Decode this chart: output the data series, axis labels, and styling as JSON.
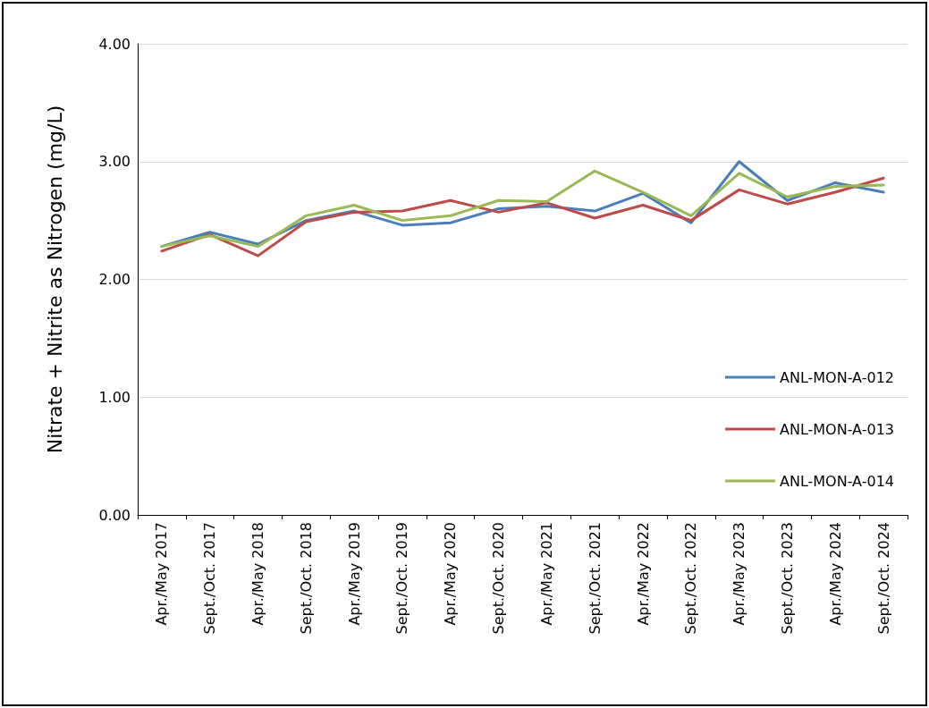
{
  "chart_data": {
    "type": "line",
    "ylabel": "Nitrate + Nitrite as Nitrogen (mg/L)",
    "categories": [
      "Apr./May 2017",
      "Sept./Oct. 2017",
      "Apr./May 2018",
      "Sept./Oct. 2018",
      "Apr./May 2019",
      "Sept./Oct. 2019",
      "Apr./May 2020",
      "Sept./Oct. 2020",
      "Apr./May 2021",
      "Sept./Oct. 2021",
      "Apr./May 2022",
      "Sept./Oct. 2022",
      "Apr./May 2023",
      "Sept./Oct. 2023",
      "Apr./May 2024",
      "Sept./Oct. 2024"
    ],
    "series": [
      {
        "name": "ANL-MON-A-012",
        "color": "#4a7ebb",
        "values": [
          2.28,
          2.4,
          2.3,
          2.5,
          2.58,
          2.46,
          2.48,
          2.6,
          2.62,
          2.58,
          2.73,
          2.48,
          3.0,
          2.67,
          2.82,
          2.74
        ]
      },
      {
        "name": "ANL-MON-A-013",
        "color": "#be4b48",
        "values": [
          2.24,
          2.38,
          2.2,
          2.49,
          2.57,
          2.58,
          2.67,
          2.57,
          2.65,
          2.52,
          2.63,
          2.5,
          2.76,
          2.64,
          2.74,
          2.86
        ]
      },
      {
        "name": "ANL-MON-A-014",
        "color": "#98b954",
        "values": [
          2.28,
          2.37,
          2.28,
          2.54,
          2.63,
          2.5,
          2.54,
          2.67,
          2.66,
          2.92,
          2.74,
          2.54,
          2.9,
          2.7,
          2.79,
          2.8
        ]
      }
    ],
    "ylim": [
      0,
      4
    ],
    "yticks": [
      {
        "value": 0,
        "label": "0.00"
      },
      {
        "value": 1,
        "label": "1.00"
      },
      {
        "value": 2,
        "label": "2.00"
      },
      {
        "value": 3,
        "label": "3.00"
      },
      {
        "value": 4,
        "label": "4.00"
      }
    ],
    "grid": "y",
    "legend": "right",
    "marker": "none",
    "line_style": "solid"
  }
}
